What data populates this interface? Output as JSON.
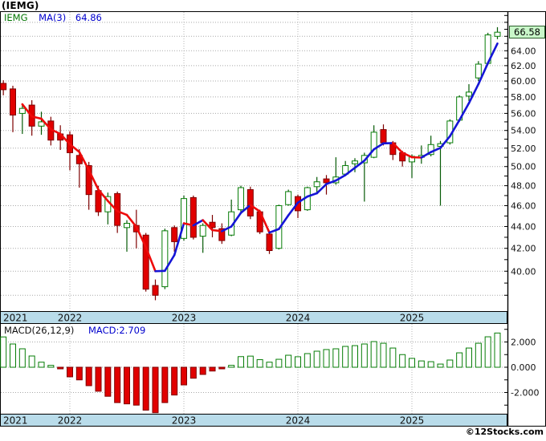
{
  "header": {
    "title": "(IEMG)"
  },
  "main_legend": {
    "symbol": "IEMG",
    "ma_label": "MA(3)",
    "ma_value": "64.86"
  },
  "macd_legend": {
    "label": "MACD(26,12,9)",
    "value_label": "MACD:2.709"
  },
  "price_badge": "66.58",
  "credit": "©12Stocks.com",
  "palette": {
    "up": "#067d06",
    "up_wick": "#055a05",
    "down": "#e10000",
    "down_wick": "#7e0000",
    "ma_up": "#1515d6",
    "ma_down": "#ee0a0a",
    "band": "#b9dcea",
    "grid": "#a8a8a8",
    "axis": "#000000",
    "badge_bg": "#c9f7c9",
    "badge_border": "#2a5c2a",
    "text": "#111111"
  },
  "chart_data": [
    {
      "type": "candlestick",
      "title": "IEMG monthly candlesticks with MA(3)",
      "x_unit": "month",
      "y_scale": "log",
      "y_tick_label_values": [
        64,
        62,
        60,
        58,
        56,
        54,
        52,
        50,
        48,
        46,
        44,
        42,
        40
      ],
      "y_gridline_values": [
        68,
        66,
        64,
        62,
        60,
        58,
        56,
        54,
        52,
        50,
        48,
        46,
        44,
        42,
        40,
        38
      ],
      "y_minor_tick_range": [
        38,
        69
      ],
      "last_price": 66.58,
      "ma_period": 3,
      "ma_last": 64.86,
      "years": [
        {
          "label": "2021",
          "index": 0,
          "align": "left"
        },
        {
          "label": "2022",
          "index": 7
        },
        {
          "label": "2023",
          "index": 19
        },
        {
          "label": "2024",
          "index": 31
        },
        {
          "label": "2025",
          "index": 43
        }
      ],
      "candles": [
        [
          "2021-06",
          59.7,
          60.1,
          58.2,
          58.9
        ],
        [
          "2021-07",
          59.0,
          59.4,
          53.8,
          55.8
        ],
        [
          "2021-08",
          56.0,
          57.2,
          53.6,
          56.6
        ],
        [
          "2021-09",
          57.0,
          57.6,
          53.4,
          54.5
        ],
        [
          "2021-10",
          54.5,
          56.2,
          53.5,
          55.0
        ],
        [
          "2021-11",
          55.1,
          55.6,
          52.3,
          52.9
        ],
        [
          "2021-12",
          53.6,
          54.6,
          51.8,
          52.9
        ],
        [
          "2022-01",
          53.5,
          53.9,
          49.6,
          51.5
        ],
        [
          "2022-02",
          51.2,
          51.9,
          47.8,
          50.3
        ],
        [
          "2022-03",
          50.1,
          50.5,
          45.6,
          47.1
        ],
        [
          "2022-04",
          47.5,
          48.0,
          45.0,
          45.4
        ],
        [
          "2022-05",
          45.4,
          47.3,
          44.2,
          46.9
        ],
        [
          "2022-06",
          47.2,
          47.4,
          43.4,
          44.1
        ],
        [
          "2022-07",
          43.9,
          44.6,
          41.7,
          44.3
        ],
        [
          "2022-08",
          44.1,
          45.6,
          42.0,
          43.5
        ],
        [
          "2022-09",
          43.2,
          43.4,
          38.3,
          38.5
        ],
        [
          "2022-10",
          38.8,
          39.3,
          37.6,
          38.0
        ],
        [
          "2022-11",
          38.7,
          43.8,
          38.5,
          43.6
        ],
        [
          "2022-12",
          43.9,
          44.1,
          41.7,
          42.6
        ],
        [
          "2023-01",
          42.9,
          47.0,
          42.7,
          46.7
        ],
        [
          "2023-02",
          46.8,
          47.0,
          42.8,
          43.0
        ],
        [
          "2023-03",
          43.1,
          44.3,
          41.6,
          44.1
        ],
        [
          "2023-04",
          44.4,
          45.1,
          43.0,
          43.9
        ],
        [
          "2023-05",
          43.8,
          44.3,
          42.4,
          42.7
        ],
        [
          "2023-06",
          43.2,
          46.6,
          43.1,
          45.4
        ],
        [
          "2023-07",
          45.6,
          48.0,
          45.4,
          47.8
        ],
        [
          "2023-08",
          47.6,
          47.9,
          44.7,
          45.0
        ],
        [
          "2023-09",
          45.4,
          45.6,
          43.3,
          43.5
        ],
        [
          "2023-10",
          43.3,
          43.6,
          41.5,
          41.8
        ],
        [
          "2023-11",
          42.0,
          46.1,
          41.9,
          46.0
        ],
        [
          "2023-12",
          46.1,
          47.6,
          46.0,
          47.4
        ],
        [
          "2024-01",
          46.9,
          47.1,
          44.8,
          45.5
        ],
        [
          "2024-02",
          45.6,
          47.9,
          45.5,
          47.8
        ],
        [
          "2024-03",
          47.9,
          48.9,
          47.3,
          48.4
        ],
        [
          "2024-04",
          48.7,
          49.1,
          47.1,
          48.3
        ],
        [
          "2024-05",
          48.3,
          51.0,
          48.1,
          48.9
        ],
        [
          "2024-06",
          49.2,
          50.6,
          49.0,
          50.1
        ],
        [
          "2024-07",
          50.3,
          50.9,
          49.4,
          50.6
        ],
        [
          "2024-08",
          50.4,
          51.5,
          46.4,
          51.2
        ],
        [
          "2024-09",
          51.0,
          54.6,
          50.9,
          53.8
        ],
        [
          "2024-10",
          54.1,
          54.7,
          52.3,
          52.6
        ],
        [
          "2024-11",
          52.6,
          52.8,
          50.7,
          51.3
        ],
        [
          "2024-12",
          51.5,
          51.7,
          50.0,
          50.6
        ],
        [
          "2025-01",
          50.5,
          51.3,
          48.8,
          51.1
        ],
        [
          "2025-02",
          51.0,
          52.3,
          50.3,
          51.2
        ],
        [
          "2025-03",
          51.3,
          53.4,
          51.1,
          52.4
        ],
        [
          "2025-04",
          52.2,
          52.8,
          46.0,
          52.5
        ],
        [
          "2025-05",
          52.6,
          55.3,
          52.4,
          55.1
        ],
        [
          "2025-06",
          55.2,
          58.2,
          55.0,
          58.0
        ],
        [
          "2025-07",
          58.1,
          59.6,
          57.5,
          58.6
        ],
        [
          "2025-08",
          60.4,
          62.6,
          60.0,
          62.2
        ],
        [
          "2025-09",
          62.3,
          66.5,
          62.1,
          66.2
        ],
        [
          "2025-10",
          66.0,
          67.3,
          65.6,
          66.58
        ]
      ]
    },
    {
      "type": "bar",
      "title": "MACD(26,12,9) histogram",
      "y_tick_label_values": [
        2,
        0,
        -2
      ],
      "y_minor_tick_range": [
        -3,
        3
      ],
      "last_macd": 2.709,
      "values": [
        2.4,
        1.84,
        1.46,
        0.89,
        0.4,
        0.15,
        -0.08,
        -0.76,
        -1.0,
        -1.46,
        -1.9,
        -2.3,
        -2.8,
        -2.9,
        -3.0,
        -3.4,
        -3.6,
        -2.8,
        -2.2,
        -1.4,
        -0.87,
        -0.57,
        -0.3,
        -0.05,
        0.15,
        0.84,
        0.88,
        0.6,
        0.4,
        0.63,
        0.95,
        0.83,
        1.08,
        1.27,
        1.4,
        1.46,
        1.65,
        1.71,
        1.84,
        2.03,
        1.9,
        1.52,
        1.0,
        0.7,
        0.5,
        0.44,
        0.25,
        0.57,
        1.14,
        1.52,
        1.9,
        2.41,
        2.709
      ]
    }
  ]
}
